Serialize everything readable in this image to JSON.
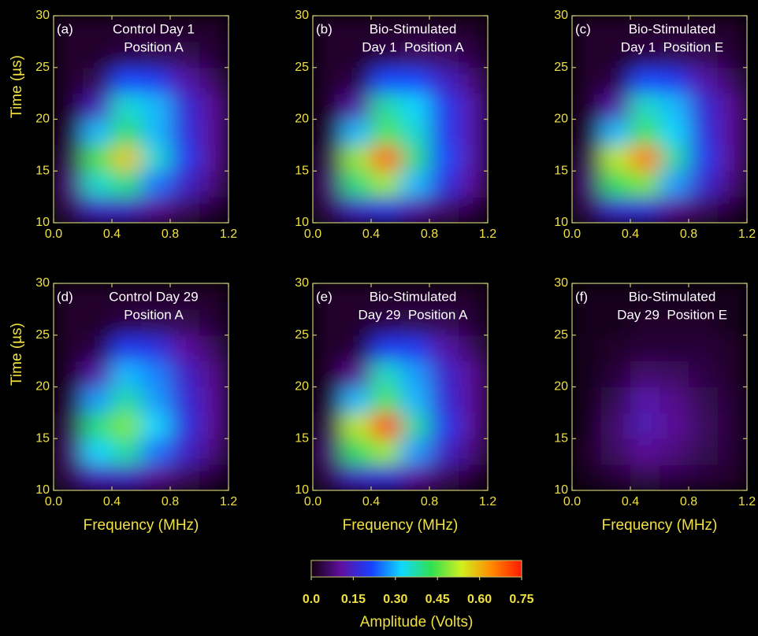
{
  "chart_data": [
    {
      "type": "heatmap",
      "label": "(a)",
      "title": [
        "Control Day 1",
        "Position A"
      ],
      "ylabel": "Time (µs)",
      "xlim": [
        0,
        1.2
      ],
      "ylim": [
        10,
        30
      ],
      "xticks": [
        {
          "value": 0,
          "label": "0.0"
        },
        0.4,
        0.8,
        1.2
      ],
      "yticks": [
        10,
        15,
        20,
        25,
        30
      ],
      "xbins": [
        0,
        0.2,
        0.4,
        0.6,
        0.8,
        1.0,
        1.2
      ],
      "ybins": [
        10,
        12.5,
        15,
        17.5,
        20,
        22.5,
        25,
        27.5,
        30
      ],
      "z": [
        [
          0.05,
          0.15,
          0.15,
          0.1,
          0.06,
          0.03
        ],
        [
          0.08,
          0.35,
          0.4,
          0.25,
          0.15,
          0.08
        ],
        [
          0.05,
          0.45,
          0.58,
          0.35,
          0.2,
          0.1
        ],
        [
          0.03,
          0.3,
          0.42,
          0.3,
          0.18,
          0.1
        ],
        [
          0.02,
          0.14,
          0.35,
          0.3,
          0.17,
          0.1
        ],
        [
          0.02,
          0.05,
          0.22,
          0.2,
          0.12,
          0.06
        ],
        [
          0.02,
          0.02,
          0.04,
          0.05,
          0.05,
          0.03
        ],
        [
          0.02,
          0.02,
          0.02,
          0.02,
          0.02,
          0.02
        ]
      ]
    },
    {
      "type": "heatmap",
      "label": "(b)",
      "title": [
        "Bio-Stimulated",
        "Day 1  Position A"
      ],
      "xlim": [
        0,
        1.2
      ],
      "ylim": [
        10,
        30
      ],
      "xticks": [
        {
          "value": 0,
          "label": "0.0"
        },
        0.4,
        0.8,
        1.2
      ],
      "yticks": [
        10,
        15,
        20,
        25,
        30
      ],
      "xbins": [
        0,
        0.2,
        0.4,
        0.6,
        0.8,
        1.0,
        1.2
      ],
      "ybins": [
        10,
        12.5,
        15,
        17.5,
        20,
        22.5,
        25,
        27.5,
        30
      ],
      "z": [
        [
          0.05,
          0.15,
          0.18,
          0.12,
          0.07,
          0.04
        ],
        [
          0.08,
          0.4,
          0.5,
          0.3,
          0.18,
          0.1
        ],
        [
          0.05,
          0.5,
          0.68,
          0.4,
          0.22,
          0.12
        ],
        [
          0.03,
          0.3,
          0.45,
          0.35,
          0.2,
          0.12
        ],
        [
          0.02,
          0.12,
          0.38,
          0.32,
          0.2,
          0.12
        ],
        [
          0.02,
          0.04,
          0.22,
          0.22,
          0.15,
          0.08
        ],
        [
          0.02,
          0.02,
          0.04,
          0.06,
          0.06,
          0.04
        ],
        [
          0.02,
          0.02,
          0.02,
          0.02,
          0.02,
          0.02
        ]
      ]
    },
    {
      "type": "heatmap",
      "label": "(c)",
      "title": [
        "Bio-Stimulated",
        "Day 1  Position E"
      ],
      "xlim": [
        0,
        1.2
      ],
      "ylim": [
        10,
        30
      ],
      "xticks": [
        {
          "value": 0,
          "label": "0.0"
        },
        0.4,
        0.8,
        1.2
      ],
      "yticks": [
        10,
        15,
        20,
        25,
        30
      ],
      "xbins": [
        0,
        0.2,
        0.4,
        0.6,
        0.8,
        1.0,
        1.2
      ],
      "ybins": [
        10,
        12.5,
        15,
        17.5,
        20,
        22.5,
        25,
        27.5,
        30
      ],
      "z": [
        [
          0.05,
          0.16,
          0.17,
          0.1,
          0.06,
          0.03
        ],
        [
          0.08,
          0.42,
          0.48,
          0.28,
          0.16,
          0.08
        ],
        [
          0.05,
          0.52,
          0.66,
          0.38,
          0.2,
          0.1
        ],
        [
          0.03,
          0.3,
          0.44,
          0.32,
          0.18,
          0.1
        ],
        [
          0.02,
          0.12,
          0.36,
          0.3,
          0.17,
          0.1
        ],
        [
          0.02,
          0.04,
          0.22,
          0.2,
          0.12,
          0.06
        ],
        [
          0.02,
          0.02,
          0.04,
          0.05,
          0.05,
          0.03
        ],
        [
          0.02,
          0.02,
          0.02,
          0.02,
          0.02,
          0.02
        ]
      ]
    },
    {
      "type": "heatmap",
      "label": "(d)",
      "title": [
        "Control Day 29",
        "Position A"
      ],
      "xlabel": "Frequency (MHz)",
      "ylabel": "Time (µs)",
      "xlim": [
        0,
        1.2
      ],
      "ylim": [
        10,
        30
      ],
      "xticks": [
        {
          "value": 0,
          "label": "0.0"
        },
        0.4,
        0.8,
        1.2
      ],
      "yticks": [
        10,
        15,
        20,
        25,
        30
      ],
      "xbins": [
        0,
        0.2,
        0.4,
        0.6,
        0.8,
        1.0,
        1.2
      ],
      "ybins": [
        10,
        12.5,
        15,
        17.5,
        20,
        22.5,
        25,
        27.5,
        30
      ],
      "z": [
        [
          0.05,
          0.14,
          0.15,
          0.1,
          0.06,
          0.03
        ],
        [
          0.07,
          0.32,
          0.38,
          0.25,
          0.15,
          0.08
        ],
        [
          0.05,
          0.4,
          0.48,
          0.32,
          0.18,
          0.1
        ],
        [
          0.03,
          0.28,
          0.38,
          0.28,
          0.17,
          0.1
        ],
        [
          0.02,
          0.12,
          0.3,
          0.26,
          0.15,
          0.09
        ],
        [
          0.02,
          0.04,
          0.2,
          0.18,
          0.11,
          0.06
        ],
        [
          0.02,
          0.02,
          0.04,
          0.05,
          0.05,
          0.03
        ],
        [
          0.02,
          0.02,
          0.02,
          0.02,
          0.02,
          0.02
        ]
      ]
    },
    {
      "type": "heatmap",
      "label": "(e)",
      "title": [
        "Bio-Stimulated",
        "Day 29  Position A"
      ],
      "xlabel": "Frequency (MHz)",
      "xlim": [
        0,
        1.2
      ],
      "ylim": [
        10,
        30
      ],
      "xticks": [
        {
          "value": 0,
          "label": "0.0"
        },
        0.4,
        0.8,
        1.2
      ],
      "yticks": [
        10,
        15,
        20,
        25,
        30
      ],
      "xbins": [
        0,
        0.2,
        0.4,
        0.6,
        0.8,
        1.0,
        1.2
      ],
      "ybins": [
        10,
        12.5,
        15,
        17.5,
        20,
        22.5,
        25,
        27.5,
        30
      ],
      "z": [
        [
          0.05,
          0.15,
          0.17,
          0.11,
          0.06,
          0.03
        ],
        [
          0.08,
          0.42,
          0.5,
          0.28,
          0.15,
          0.08
        ],
        [
          0.05,
          0.52,
          0.72,
          0.38,
          0.2,
          0.1
        ],
        [
          0.03,
          0.3,
          0.45,
          0.3,
          0.17,
          0.1
        ],
        [
          0.02,
          0.1,
          0.36,
          0.28,
          0.16,
          0.1
        ],
        [
          0.02,
          0.03,
          0.2,
          0.2,
          0.12,
          0.06
        ],
        [
          0.02,
          0.02,
          0.04,
          0.05,
          0.05,
          0.03
        ],
        [
          0.02,
          0.02,
          0.02,
          0.02,
          0.02,
          0.02
        ]
      ]
    },
    {
      "type": "heatmap",
      "label": "(f)",
      "title": [
        "Bio-Stimulated",
        "Day 29  Position E"
      ],
      "xlabel": "Frequency (MHz)",
      "xlim": [
        0,
        1.2
      ],
      "ylim": [
        10,
        30
      ],
      "xticks": [
        {
          "value": 0,
          "label": "0.0"
        },
        0.4,
        0.8,
        1.2
      ],
      "yticks": [
        10,
        15,
        20,
        25,
        30
      ],
      "xbins": [
        0,
        0.2,
        0.4,
        0.6,
        0.8,
        1.0,
        1.2
      ],
      "ybins": [
        10,
        12.5,
        15,
        17.5,
        20,
        22.5,
        25,
        27.5,
        30
      ],
      "z": [
        [
          0.01,
          0.03,
          0.05,
          0.04,
          0.03,
          0.02
        ],
        [
          0.02,
          0.06,
          0.1,
          0.08,
          0.05,
          0.03
        ],
        [
          0.01,
          0.07,
          0.13,
          0.1,
          0.06,
          0.03
        ],
        [
          0.01,
          0.05,
          0.12,
          0.09,
          0.05,
          0.03
        ],
        [
          0.01,
          0.03,
          0.07,
          0.06,
          0.04,
          0.02
        ],
        [
          0.01,
          0.02,
          0.03,
          0.03,
          0.03,
          0.02
        ],
        [
          0.01,
          0.01,
          0.02,
          0.02,
          0.02,
          0.01
        ],
        [
          0.01,
          0.01,
          0.01,
          0.01,
          0.01,
          0.01
        ]
      ]
    }
  ],
  "colorbar": {
    "label": "Amplitude (Volts)",
    "clim": [
      0,
      0.75
    ],
    "ticks": [
      {
        "value": 0,
        "label": "0.0"
      },
      0.15,
      {
        "value": 0.3,
        "label": "0.30"
      },
      0.45,
      {
        "value": 0.6,
        "label": "0.60"
      },
      0.75
    ],
    "colorscale": [
      "#120010",
      "#6010a0",
      "#1840ff",
      "#10d8ff",
      "#30e050",
      "#d0f020",
      "#ff8a00",
      "#ff1800"
    ]
  }
}
